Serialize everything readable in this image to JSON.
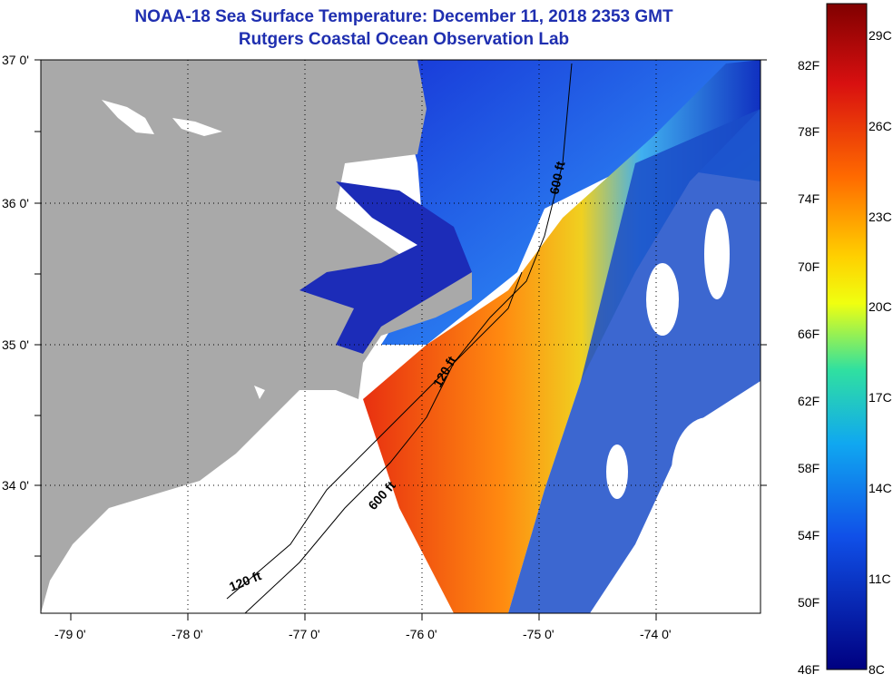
{
  "title": "NOAA-18 Sea Surface Temperature:  December 11, 2018 2353 GMT",
  "subtitle": "Rutgers Coastal Ocean Observation Lab",
  "lat_labels": [
    "37 0'",
    "36 0'",
    "35 0'",
    "34 0'"
  ],
  "lon_labels": [
    "-79 0'",
    "-78 0'",
    "-77 0'",
    "-76 0'",
    "-75 0'",
    "-74 0'"
  ],
  "contours": [
    "600 ft",
    "120 ft",
    "600 ft",
    "120 ft"
  ],
  "colorbar_f": [
    "82F",
    "78F",
    "74F",
    "70F",
    "66F",
    "62F",
    "58F",
    "54F",
    "50F",
    "46F"
  ],
  "colorbar_c": [
    "29C",
    "26C",
    "23C",
    "20C",
    "17C",
    "14C",
    "11C",
    "8C"
  ],
  "colors": {
    "title": "#1f2fb0",
    "land": "#a9a9a9",
    "warm": "#e03010",
    "cool": "#1030c8"
  }
}
